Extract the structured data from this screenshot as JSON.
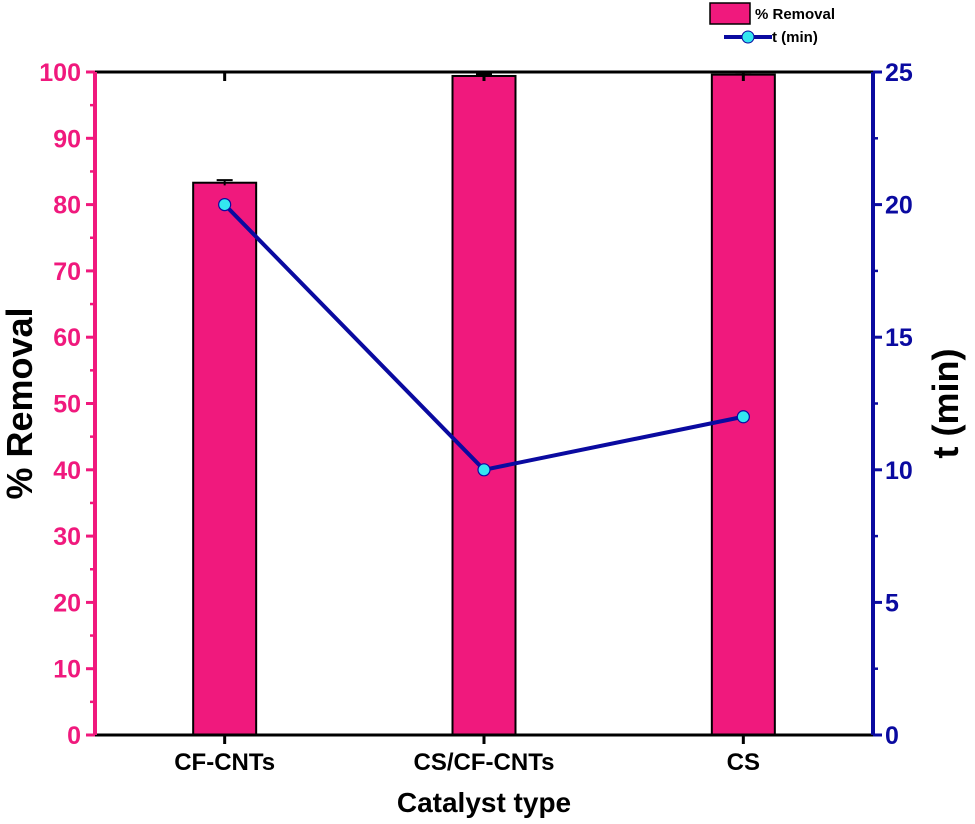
{
  "chart_data": {
    "type": "bar",
    "title": "",
    "xlabel": "Catalyst type",
    "ylabel": "% Removal",
    "y2label": "t (min)",
    "categories": [
      "CF-CNTs",
      "CS/CF-CNTs",
      "CS"
    ],
    "ylim": [
      0,
      100
    ],
    "y2lim": [
      0,
      25
    ],
    "yticks": [
      0,
      10,
      20,
      30,
      40,
      50,
      60,
      70,
      80,
      90,
      100
    ],
    "y2ticks": [
      0,
      5,
      10,
      15,
      20,
      25
    ],
    "grid": false,
    "legend_position": "top-right",
    "series": [
      {
        "name": "% Removal",
        "kind": "bar",
        "axis": "left",
        "values": [
          83.3,
          99.4,
          99.6
        ],
        "error": [
          0.4,
          0.3,
          0.3
        ],
        "color": "#f0197d"
      },
      {
        "name": "t (min)",
        "kind": "line",
        "axis": "right",
        "values": [
          20,
          10,
          12
        ],
        "color": "#0a0aa0",
        "marker_color": "#33e6f0"
      }
    ],
    "colors": {
      "left_axis": "#f0197d",
      "right_axis": "#0a0aa0",
      "text": "#000000"
    }
  }
}
